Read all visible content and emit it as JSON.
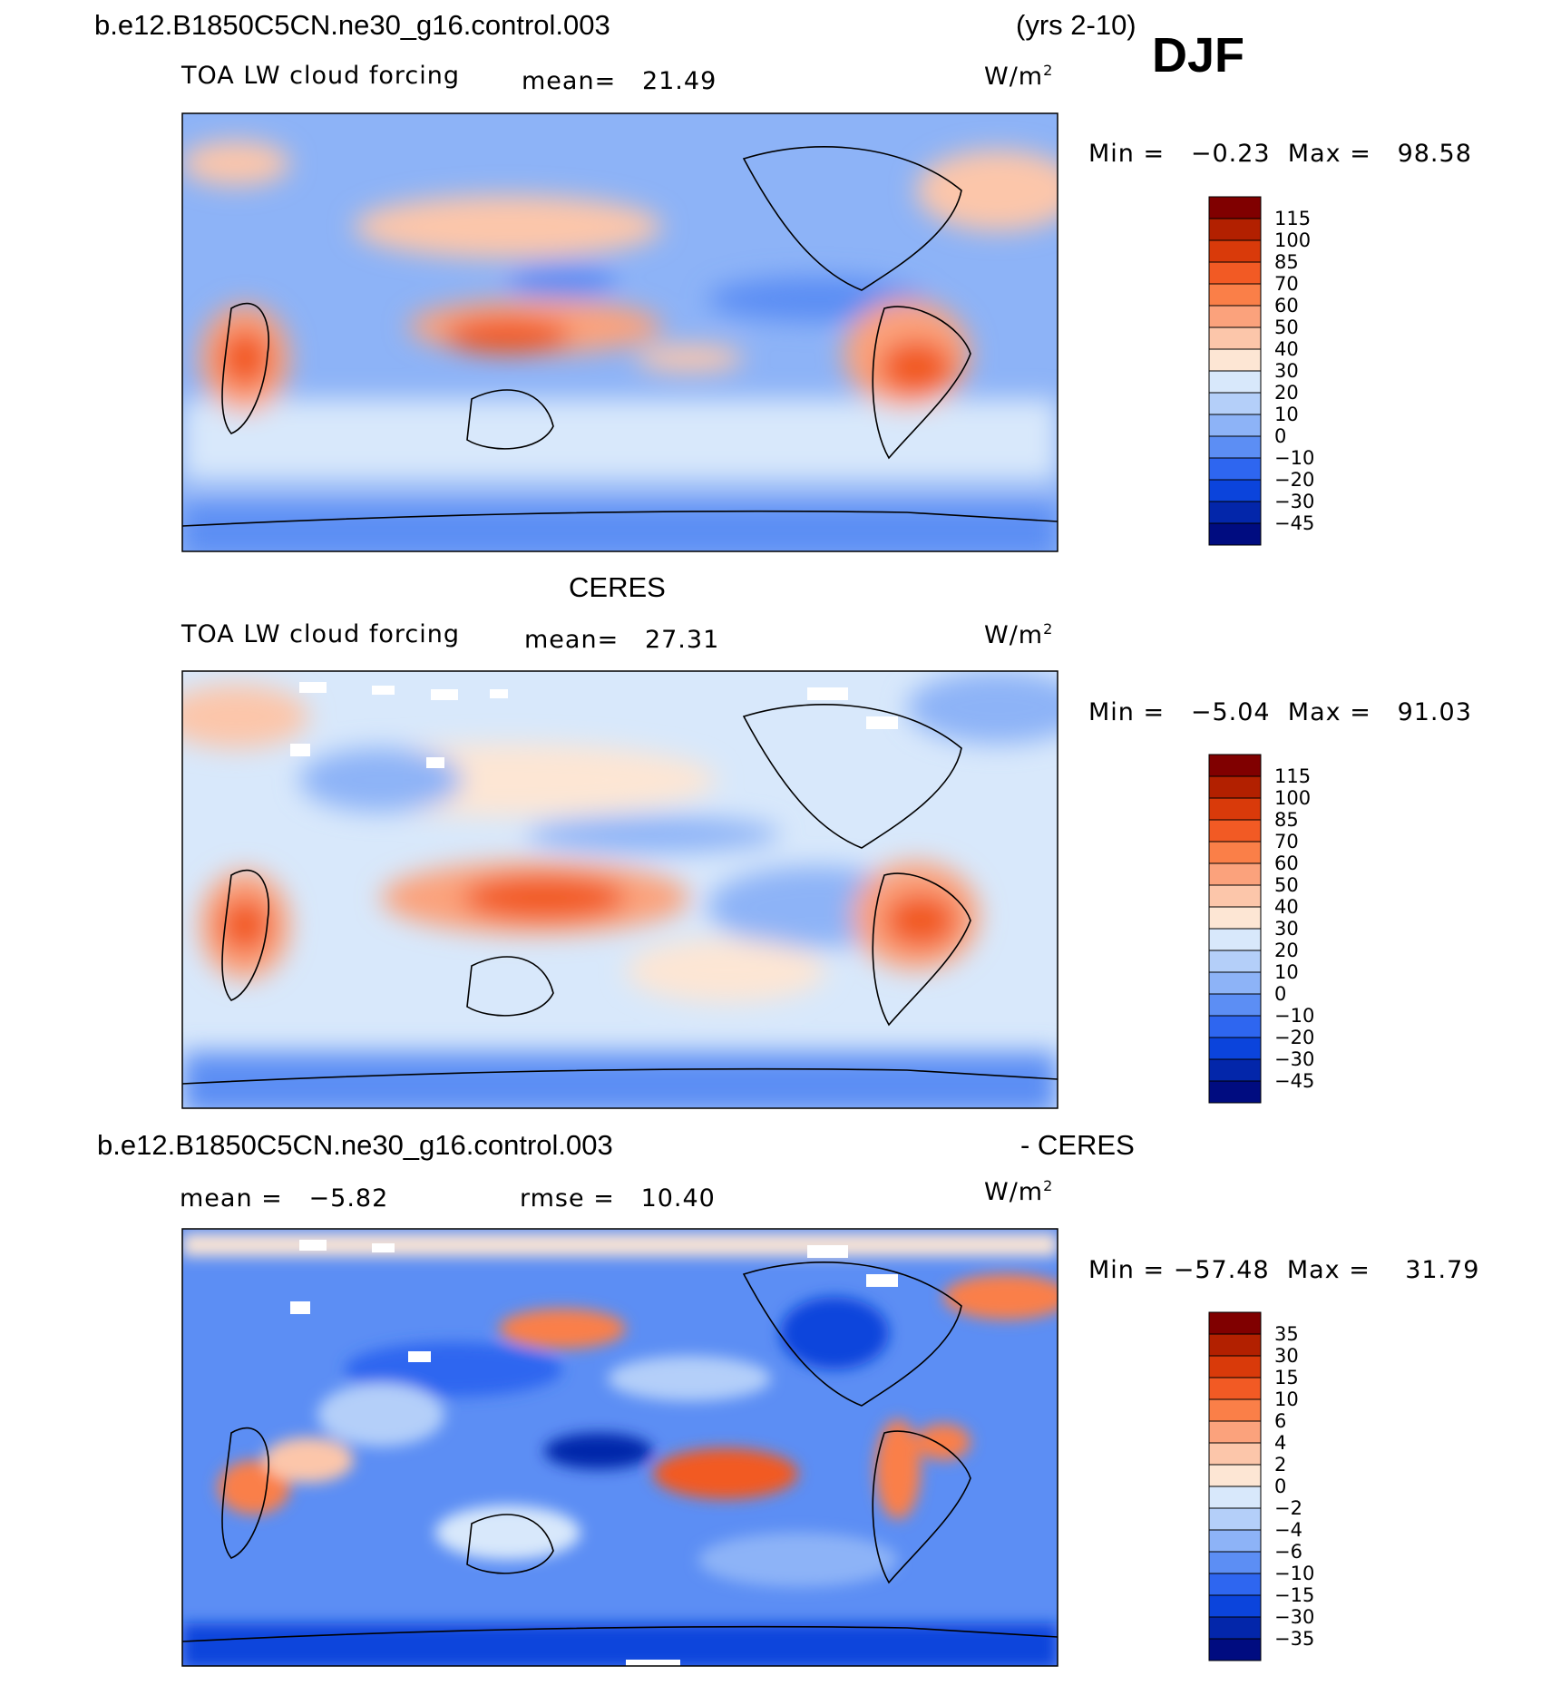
{
  "figure": {
    "case_name": "b.e12.B1850C5CN.ne30_g16.control.003",
    "years": "(yrs 2-10)",
    "season": "DJF"
  },
  "chart_data": [
    {
      "type": "heatmap",
      "heading": "",
      "variable": "TOA LW cloud forcing",
      "stat1_label": "mean=",
      "stat1_value": "21.49",
      "stat2_label": "",
      "stat2_value": "",
      "units": "W/m",
      "units_sup": "2",
      "min_label": "Min =",
      "min_value": "−0.23",
      "max_label": "Max =",
      "max_value": "98.58",
      "levels": [
        "115",
        "100",
        "85",
        "70",
        "60",
        "50",
        "40",
        "30",
        "20",
        "10",
        "0",
        "−10",
        "−20",
        "−30",
        "−45"
      ],
      "colors": [
        "#800000",
        "#b22000",
        "#d93a0a",
        "#f25a24",
        "#fa7f48",
        "#fba27c",
        "#fcc6aa",
        "#fde6d4",
        "#d8e8fb",
        "#b4cff9",
        "#8db3f7",
        "#5c8ef4",
        "#2e66f0",
        "#0b44dc",
        "#0326aa",
        "#000c80"
      ],
      "field_mean": 21.49,
      "field_min": -0.23,
      "field_max": 98.58
    },
    {
      "type": "heatmap",
      "heading": "CERES",
      "variable": "TOA LW cloud forcing",
      "stat1_label": "mean=",
      "stat1_value": "27.31",
      "stat2_label": "",
      "stat2_value": "",
      "units": "W/m",
      "units_sup": "2",
      "min_label": "Min =",
      "min_value": "−5.04",
      "max_label": "Max =",
      "max_value": "91.03",
      "levels": [
        "115",
        "100",
        "85",
        "70",
        "60",
        "50",
        "40",
        "30",
        "20",
        "10",
        "0",
        "−10",
        "−20",
        "−30",
        "−45"
      ],
      "colors": [
        "#800000",
        "#b22000",
        "#d93a0a",
        "#f25a24",
        "#fa7f48",
        "#fba27c",
        "#fcc6aa",
        "#fde6d4",
        "#d8e8fb",
        "#b4cff9",
        "#8db3f7",
        "#5c8ef4",
        "#2e66f0",
        "#0b44dc",
        "#0326aa",
        "#000c80"
      ],
      "field_mean": 27.31,
      "field_min": -5.04,
      "field_max": 91.03
    },
    {
      "type": "heatmap",
      "heading": "b.e12.B1850C5CN.ne30_g16.control.003",
      "heading_right": "- CERES",
      "variable": "",
      "stat1_label": "mean =",
      "stat1_value": "−5.82",
      "stat2_label": "rmse =",
      "stat2_value": "10.40",
      "units": "W/m",
      "units_sup": "2",
      "min_label": "Min =",
      "min_value": "−57.48",
      "max_label": "Max =",
      "max_value": "31.79",
      "levels": [
        "35",
        "30",
        "15",
        "10",
        "6",
        "4",
        "2",
        "0",
        "−2",
        "−4",
        "−6",
        "−10",
        "−15",
        "−30",
        "−35"
      ],
      "colors": [
        "#800000",
        "#b22000",
        "#d93a0a",
        "#f25a24",
        "#fa7f48",
        "#fba27c",
        "#fcc6aa",
        "#fde6d4",
        "#d8e8fb",
        "#b4cff9",
        "#8db3f7",
        "#5c8ef4",
        "#2e66f0",
        "#0b44dc",
        "#0326aa",
        "#000c80"
      ],
      "field_mean": -5.82,
      "field_rmse": 10.4,
      "field_min": -57.48,
      "field_max": 31.79
    }
  ]
}
